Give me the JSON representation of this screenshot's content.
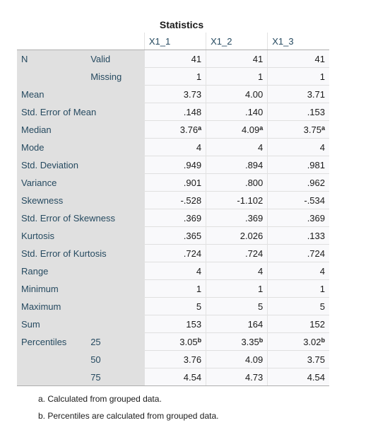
{
  "title": "Statistics",
  "columns": [
    "X1_1",
    "X1_2",
    "X1_3"
  ],
  "rows": [
    {
      "label": "N",
      "sub": "Valid",
      "values": [
        "41",
        "41",
        "41"
      ]
    },
    {
      "label": "",
      "sub": "Missing",
      "values": [
        "1",
        "1",
        "1"
      ]
    },
    {
      "label": "Mean",
      "sub": "",
      "values": [
        "3.73",
        "4.00",
        "3.71"
      ]
    },
    {
      "label": "Std. Error of Mean",
      "sub": "",
      "values": [
        ".148",
        ".140",
        ".153"
      ]
    },
    {
      "label": "Median",
      "sub": "",
      "values": [
        "3.76",
        "4.09",
        "3.75"
      ],
      "sup": [
        "a",
        "a",
        "a"
      ]
    },
    {
      "label": "Mode",
      "sub": "",
      "values": [
        "4",
        "4",
        "4"
      ]
    },
    {
      "label": "Std. Deviation",
      "sub": "",
      "values": [
        ".949",
        ".894",
        ".981"
      ]
    },
    {
      "label": "Variance",
      "sub": "",
      "values": [
        ".901",
        ".800",
        ".962"
      ]
    },
    {
      "label": "Skewness",
      "sub": "",
      "values": [
        "-.528",
        "-1.102",
        "-.534"
      ]
    },
    {
      "label": "Std. Error of Skewness",
      "sub": "",
      "values": [
        ".369",
        ".369",
        ".369"
      ]
    },
    {
      "label": "Kurtosis",
      "sub": "",
      "values": [
        ".365",
        "2.026",
        ".133"
      ]
    },
    {
      "label": "Std. Error of Kurtosis",
      "sub": "",
      "values": [
        ".724",
        ".724",
        ".724"
      ]
    },
    {
      "label": "Range",
      "sub": "",
      "values": [
        "4",
        "4",
        "4"
      ]
    },
    {
      "label": "Minimum",
      "sub": "",
      "values": [
        "1",
        "1",
        "1"
      ]
    },
    {
      "label": "Maximum",
      "sub": "",
      "values": [
        "5",
        "5",
        "5"
      ]
    },
    {
      "label": "Sum",
      "sub": "",
      "values": [
        "153",
        "164",
        "152"
      ]
    },
    {
      "label": "Percentiles",
      "sub": "25",
      "values": [
        "3.05",
        "3.35",
        "3.02"
      ],
      "sup": [
        "b",
        "b",
        "b"
      ]
    },
    {
      "label": "",
      "sub": "50",
      "values": [
        "3.76",
        "4.09",
        "3.75"
      ]
    },
    {
      "label": "",
      "sub": "75",
      "values": [
        "4.54",
        "4.73",
        "4.54"
      ]
    }
  ],
  "footnotes": [
    "a. Calculated from grouped data.",
    "b. Percentiles are calculated from grouped data."
  ]
}
